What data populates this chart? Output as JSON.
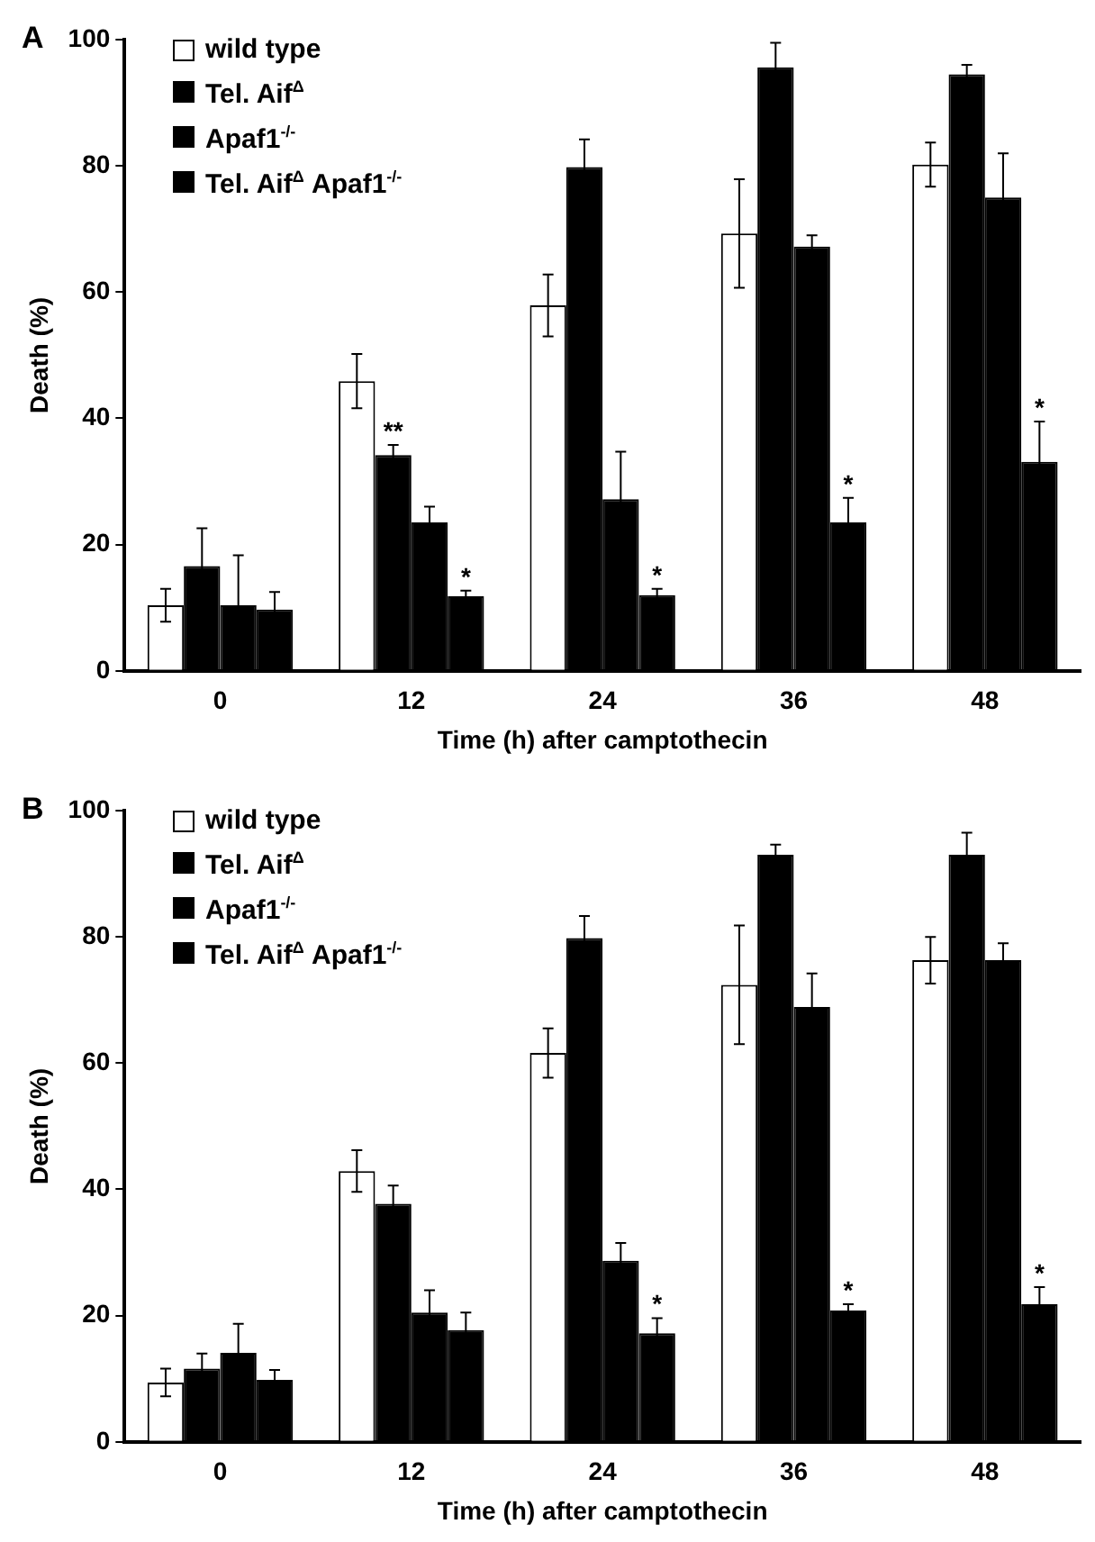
{
  "chart_data": [
    {
      "type": "bar",
      "title": "A",
      "xlabel": "Time (h) after camptothecin",
      "ylabel": "Death (%)",
      "categories": [
        "0",
        "12",
        "24",
        "36",
        "48"
      ],
      "ylim": [
        0,
        100
      ],
      "yticks": [
        0,
        20,
        40,
        60,
        80,
        100
      ],
      "grid": false,
      "legend": "top left",
      "series": [
        {
          "name": "wild type",
          "color": "#ffffff",
          "values": [
            10.4,
            45.9,
            57.9,
            69.3,
            80.2
          ],
          "errors": [
            2.6,
            4.3,
            4.9,
            8.6,
            3.5
          ]
        },
        {
          "name": "Tel. Aif$^{Δ}$",
          "color": "#000000",
          "values": [
            16.6,
            34.2,
            79.8,
            95.6,
            94.5
          ],
          "errors": [
            6,
            1.6,
            4.4,
            3.9,
            1.5
          ]
        },
        {
          "name": "Apaf1$^{-/-}$",
          "color": "#000000",
          "values": [
            10.4,
            23.5,
            27.2,
            67.2,
            75
          ],
          "errors": [
            7.9,
            2.5,
            7.5,
            1.8,
            7
          ]
        },
        {
          "name": "Tel. Aif$^{Δ}$ Apaf1$^{-/-}$",
          "color": "#000000",
          "values": [
            9.7,
            11.8,
            12,
            23.5,
            33.1
          ],
          "errors": [
            2.8,
            0.9,
            1,
            3.9,
            6.4
          ]
        }
      ],
      "annotations": [
        {
          "text": "**",
          "x": "12",
          "y": 34.2
        },
        {
          "text": "*",
          "x": "12",
          "y": 11.8
        },
        {
          "text": "*",
          "x": "24",
          "y": 12
        },
        {
          "text": "*",
          "x": "36",
          "y": 23.5
        },
        {
          "text": "*",
          "x": "48",
          "y": 33.1
        }
      ]
    },
    {
      "type": "bar",
      "title": "B",
      "xlabel": "Time (h) after camptothecin",
      "ylabel": "Death (%)",
      "categories": [
        "0",
        "12",
        "24",
        "36",
        "48"
      ],
      "ylim": [
        0,
        100
      ],
      "yticks": [
        0,
        20,
        40,
        60,
        80,
        100
      ],
      "grid": false,
      "legend": "top left",
      "series": [
        {
          "name": "wild type",
          "color": "#ffffff",
          "values": [
            9.4,
            42.9,
            61.6,
            72.4,
            76.3
          ],
          "errors": [
            2.2,
            3.3,
            3.9,
            9.4,
            3.7
          ]
        },
        {
          "name": "Tel. Aif$^{Δ}$",
          "color": "#000000",
          "values": [
            11.6,
            37.7,
            79.8,
            93,
            93
          ],
          "errors": [
            2.4,
            2.9,
            3.5,
            1.6,
            3.5
          ]
        },
        {
          "name": "Apaf1$^{-/-}$",
          "color": "#000000",
          "values": [
            14.1,
            20.5,
            28.7,
            68.9,
            76.3
          ],
          "errors": [
            4.6,
            3.5,
            2.8,
            5.3,
            2.7
          ]
        },
        {
          "name": "Tel. Aif$^{Δ}$ Apaf1$^{-/-}$",
          "color": "#000000",
          "values": [
            9.8,
            17.7,
            17.2,
            20.8,
            21.8
          ],
          "errors": [
            1.6,
            2.8,
            2.4,
            1,
            2.7
          ]
        }
      ],
      "annotations": [
        {
          "text": "*",
          "x": "24",
          "y": 17.2
        },
        {
          "text": "*",
          "x": "36",
          "y": 20.8
        },
        {
          "text": "*",
          "x": "48",
          "y": 21.8
        }
      ]
    }
  ]
}
